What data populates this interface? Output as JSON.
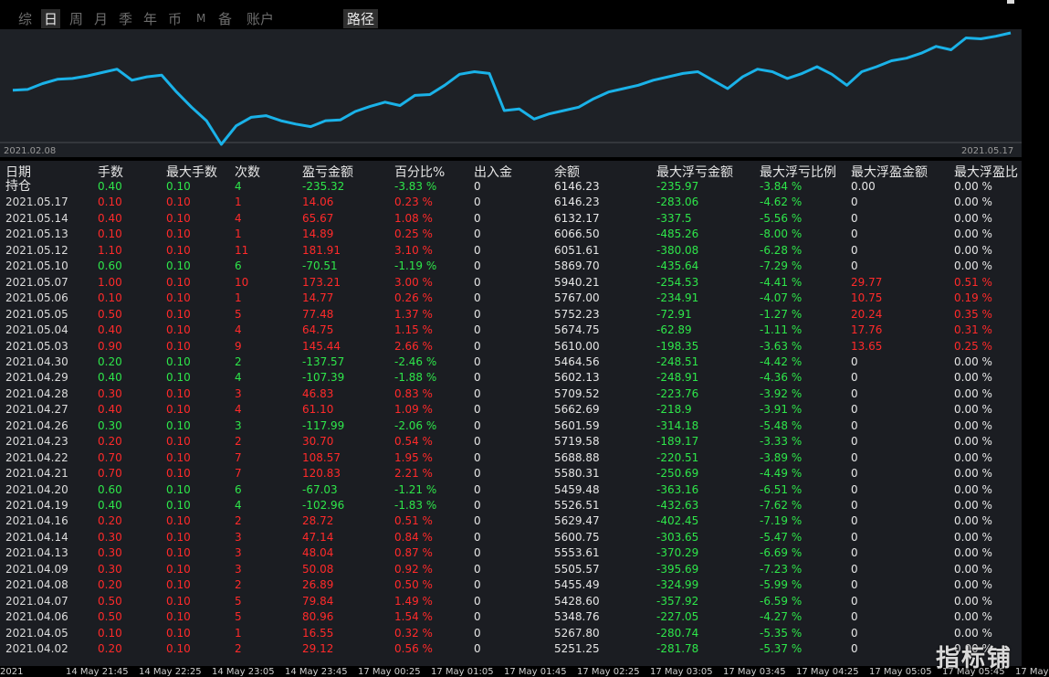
{
  "tabs": [
    {
      "label": "综",
      "active": false
    },
    {
      "label": "日",
      "active": true
    },
    {
      "label": "周",
      "active": false
    },
    {
      "label": "月",
      "active": false
    },
    {
      "label": "季",
      "active": false
    },
    {
      "label": "年",
      "active": false
    },
    {
      "label": "币",
      "active": false
    },
    {
      "label": "M",
      "active": false
    },
    {
      "label": "备",
      "active": false
    },
    {
      "label": "账户",
      "active": false
    }
  ],
  "route_tab": "路径",
  "chart_data": {
    "type": "line",
    "x_start_label": "2021.02.08",
    "x_end_label": "2021.05.17",
    "x_labels_shown": [
      "2021.02.08",
      "2021.05.17"
    ],
    "series": [
      {
        "values": [
          5000,
          5005,
          5040,
          5065,
          5070,
          5085,
          5105,
          5125,
          5060,
          5080,
          5090,
          4990,
          4900,
          4820,
          4680,
          4790,
          4840,
          4850,
          4820,
          4800,
          4785,
          4820,
          4825,
          4875,
          4905,
          4930,
          4910,
          4970,
          4975,
          5030,
          5095,
          5110,
          5100,
          4880,
          4890,
          4830,
          4860,
          4880,
          4900,
          4950,
          4990,
          5010,
          5030,
          5060,
          5080,
          5100,
          5110,
          5060,
          5010,
          5080,
          5125,
          5110,
          5070,
          5100,
          5140,
          5095,
          5030,
          5110,
          5140,
          5175,
          5190,
          5220,
          5260,
          5240,
          5310,
          5305,
          5320,
          5340
        ]
      }
    ],
    "line_color": "#1ab2e8",
    "grid": false
  },
  "table": {
    "headers": [
      "日期",
      "手数",
      "最大手数",
      "次数",
      "盈亏金额",
      "百分比%",
      "出入金",
      "余额",
      "最大浮亏金额",
      "最大浮亏比例",
      "最大浮盈金额",
      "最大浮盈比"
    ],
    "rows": [
      [
        "持仓",
        "0.40",
        "0.10",
        "4",
        "-235.32",
        "-3.83 %",
        "0",
        "6146.23",
        "-235.97",
        "-3.84 %",
        "0.00",
        "0.00 %",
        "g"
      ],
      [
        "2021.05.17",
        "0.10",
        "0.10",
        "1",
        "14.06",
        "0.23 %",
        "0",
        "6146.23",
        "-283.06",
        "-4.62 %",
        "0",
        "0.00 %",
        "r"
      ],
      [
        "2021.05.14",
        "0.40",
        "0.10",
        "4",
        "65.67",
        "1.08 %",
        "0",
        "6132.17",
        "-337.5",
        "-5.56 %",
        "0",
        "0.00 %",
        "r"
      ],
      [
        "2021.05.13",
        "0.10",
        "0.10",
        "1",
        "14.89",
        "0.25 %",
        "0",
        "6066.50",
        "-485.26",
        "-8.00 %",
        "0",
        "0.00 %",
        "r"
      ],
      [
        "2021.05.12",
        "1.10",
        "0.10",
        "11",
        "181.91",
        "3.10 %",
        "0",
        "6051.61",
        "-380.08",
        "-6.28 %",
        "0",
        "0.00 %",
        "r"
      ],
      [
        "2021.05.10",
        "0.60",
        "0.10",
        "6",
        "-70.51",
        "-1.19 %",
        "0",
        "5869.70",
        "-435.64",
        "-7.29 %",
        "0",
        "0.00 %",
        "g"
      ],
      [
        "2021.05.07",
        "1.00",
        "0.10",
        "10",
        "173.21",
        "3.00 %",
        "0",
        "5940.21",
        "-254.53",
        "-4.41 %",
        "29.77",
        "0.51 %",
        "r"
      ],
      [
        "2021.05.06",
        "0.10",
        "0.10",
        "1",
        "14.77",
        "0.26 %",
        "0",
        "5767.00",
        "-234.91",
        "-4.07 %",
        "10.75",
        "0.19 %",
        "r"
      ],
      [
        "2021.05.05",
        "0.50",
        "0.10",
        "5",
        "77.48",
        "1.37 %",
        "0",
        "5752.23",
        "-72.91",
        "-1.27 %",
        "20.24",
        "0.35 %",
        "r"
      ],
      [
        "2021.05.04",
        "0.40",
        "0.10",
        "4",
        "64.75",
        "1.15 %",
        "0",
        "5674.75",
        "-62.89",
        "-1.11 %",
        "17.76",
        "0.31 %",
        "r"
      ],
      [
        "2021.05.03",
        "0.90",
        "0.10",
        "9",
        "145.44",
        "2.66 %",
        "0",
        "5610.00",
        "-198.35",
        "-3.63 %",
        "13.65",
        "0.25 %",
        "r"
      ],
      [
        "2021.04.30",
        "0.20",
        "0.10",
        "2",
        "-137.57",
        "-2.46 %",
        "0",
        "5464.56",
        "-248.51",
        "-4.42 %",
        "0",
        "0.00 %",
        "g"
      ],
      [
        "2021.04.29",
        "0.40",
        "0.10",
        "4",
        "-107.39",
        "-1.88 %",
        "0",
        "5602.13",
        "-248.91",
        "-4.36 %",
        "0",
        "0.00 %",
        "g"
      ],
      [
        "2021.04.28",
        "0.30",
        "0.10",
        "3",
        "46.83",
        "0.83 %",
        "0",
        "5709.52",
        "-223.76",
        "-3.92 %",
        "0",
        "0.00 %",
        "r"
      ],
      [
        "2021.04.27",
        "0.40",
        "0.10",
        "4",
        "61.10",
        "1.09 %",
        "0",
        "5662.69",
        "-218.9",
        "-3.91 %",
        "0",
        "0.00 %",
        "r"
      ],
      [
        "2021.04.26",
        "0.30",
        "0.10",
        "3",
        "-117.99",
        "-2.06 %",
        "0",
        "5601.59",
        "-314.18",
        "-5.48 %",
        "0",
        "0.00 %",
        "g"
      ],
      [
        "2021.04.23",
        "0.20",
        "0.10",
        "2",
        "30.70",
        "0.54 %",
        "0",
        "5719.58",
        "-189.17",
        "-3.33 %",
        "0",
        "0.00 %",
        "r"
      ],
      [
        "2021.04.22",
        "0.70",
        "0.10",
        "7",
        "108.57",
        "1.95 %",
        "0",
        "5688.88",
        "-220.51",
        "-3.89 %",
        "0",
        "0.00 %",
        "r"
      ],
      [
        "2021.04.21",
        "0.70",
        "0.10",
        "7",
        "120.83",
        "2.21 %",
        "0",
        "5580.31",
        "-250.69",
        "-4.49 %",
        "0",
        "0.00 %",
        "r"
      ],
      [
        "2021.04.20",
        "0.60",
        "0.10",
        "6",
        "-67.03",
        "-1.21 %",
        "0",
        "5459.48",
        "-363.16",
        "-6.51 %",
        "0",
        "0.00 %",
        "g"
      ],
      [
        "2021.04.19",
        "0.40",
        "0.10",
        "4",
        "-102.96",
        "-1.83 %",
        "0",
        "5526.51",
        "-432.63",
        "-7.62 %",
        "0",
        "0.00 %",
        "g"
      ],
      [
        "2021.04.16",
        "0.20",
        "0.10",
        "2",
        "28.72",
        "0.51 %",
        "0",
        "5629.47",
        "-402.45",
        "-7.19 %",
        "0",
        "0.00 %",
        "r"
      ],
      [
        "2021.04.14",
        "0.30",
        "0.10",
        "3",
        "47.14",
        "0.84 %",
        "0",
        "5600.75",
        "-303.65",
        "-5.47 %",
        "0",
        "0.00 %",
        "r"
      ],
      [
        "2021.04.13",
        "0.30",
        "0.10",
        "3",
        "48.04",
        "0.87 %",
        "0",
        "5553.61",
        "-370.29",
        "-6.69 %",
        "0",
        "0.00 %",
        "r"
      ],
      [
        "2021.04.09",
        "0.30",
        "0.10",
        "3",
        "50.08",
        "0.92 %",
        "0",
        "5505.57",
        "-395.69",
        "-7.23 %",
        "0",
        "0.00 %",
        "r"
      ],
      [
        "2021.04.08",
        "0.20",
        "0.10",
        "2",
        "26.89",
        "0.50 %",
        "0",
        "5455.49",
        "-324.99",
        "-5.99 %",
        "0",
        "0.00 %",
        "r"
      ],
      [
        "2021.04.07",
        "0.50",
        "0.10",
        "5",
        "79.84",
        "1.49 %",
        "0",
        "5428.60",
        "-357.92",
        "-6.59 %",
        "0",
        "0.00 %",
        "r"
      ],
      [
        "2021.04.06",
        "0.50",
        "0.10",
        "5",
        "80.96",
        "1.54 %",
        "0",
        "5348.76",
        "-227.05",
        "-4.27 %",
        "0",
        "0.00 %",
        "r"
      ],
      [
        "2021.04.05",
        "0.10",
        "0.10",
        "1",
        "16.55",
        "0.32 %",
        "0",
        "5267.80",
        "-280.74",
        "-5.35 %",
        "0",
        "0.00 %",
        "r"
      ],
      [
        "2021.04.02",
        "0.20",
        "0.10",
        "2",
        "29.12",
        "0.56 %",
        "0",
        "5251.25",
        "-281.78",
        "-5.37 %",
        "0",
        "0.00 %",
        "r"
      ]
    ]
  },
  "bottom_axis": [
    "2021",
    "14 May 21:45",
    "14 May 22:25",
    "14 May 23:05",
    "14 May 23:45",
    "17 May 00:25",
    "17 May 01:05",
    "17 May 01:45",
    "17 May 02:25",
    "17 May 03:05",
    "17 May 03:45",
    "17 May 04:25",
    "17 May 05:05",
    "17 May 05:45",
    "17 May"
  ],
  "watermark": "指标铺",
  "colors": {
    "profit": "#ff2a2a",
    "loss": "#2ee64a",
    "line": "#1ab2e8"
  }
}
